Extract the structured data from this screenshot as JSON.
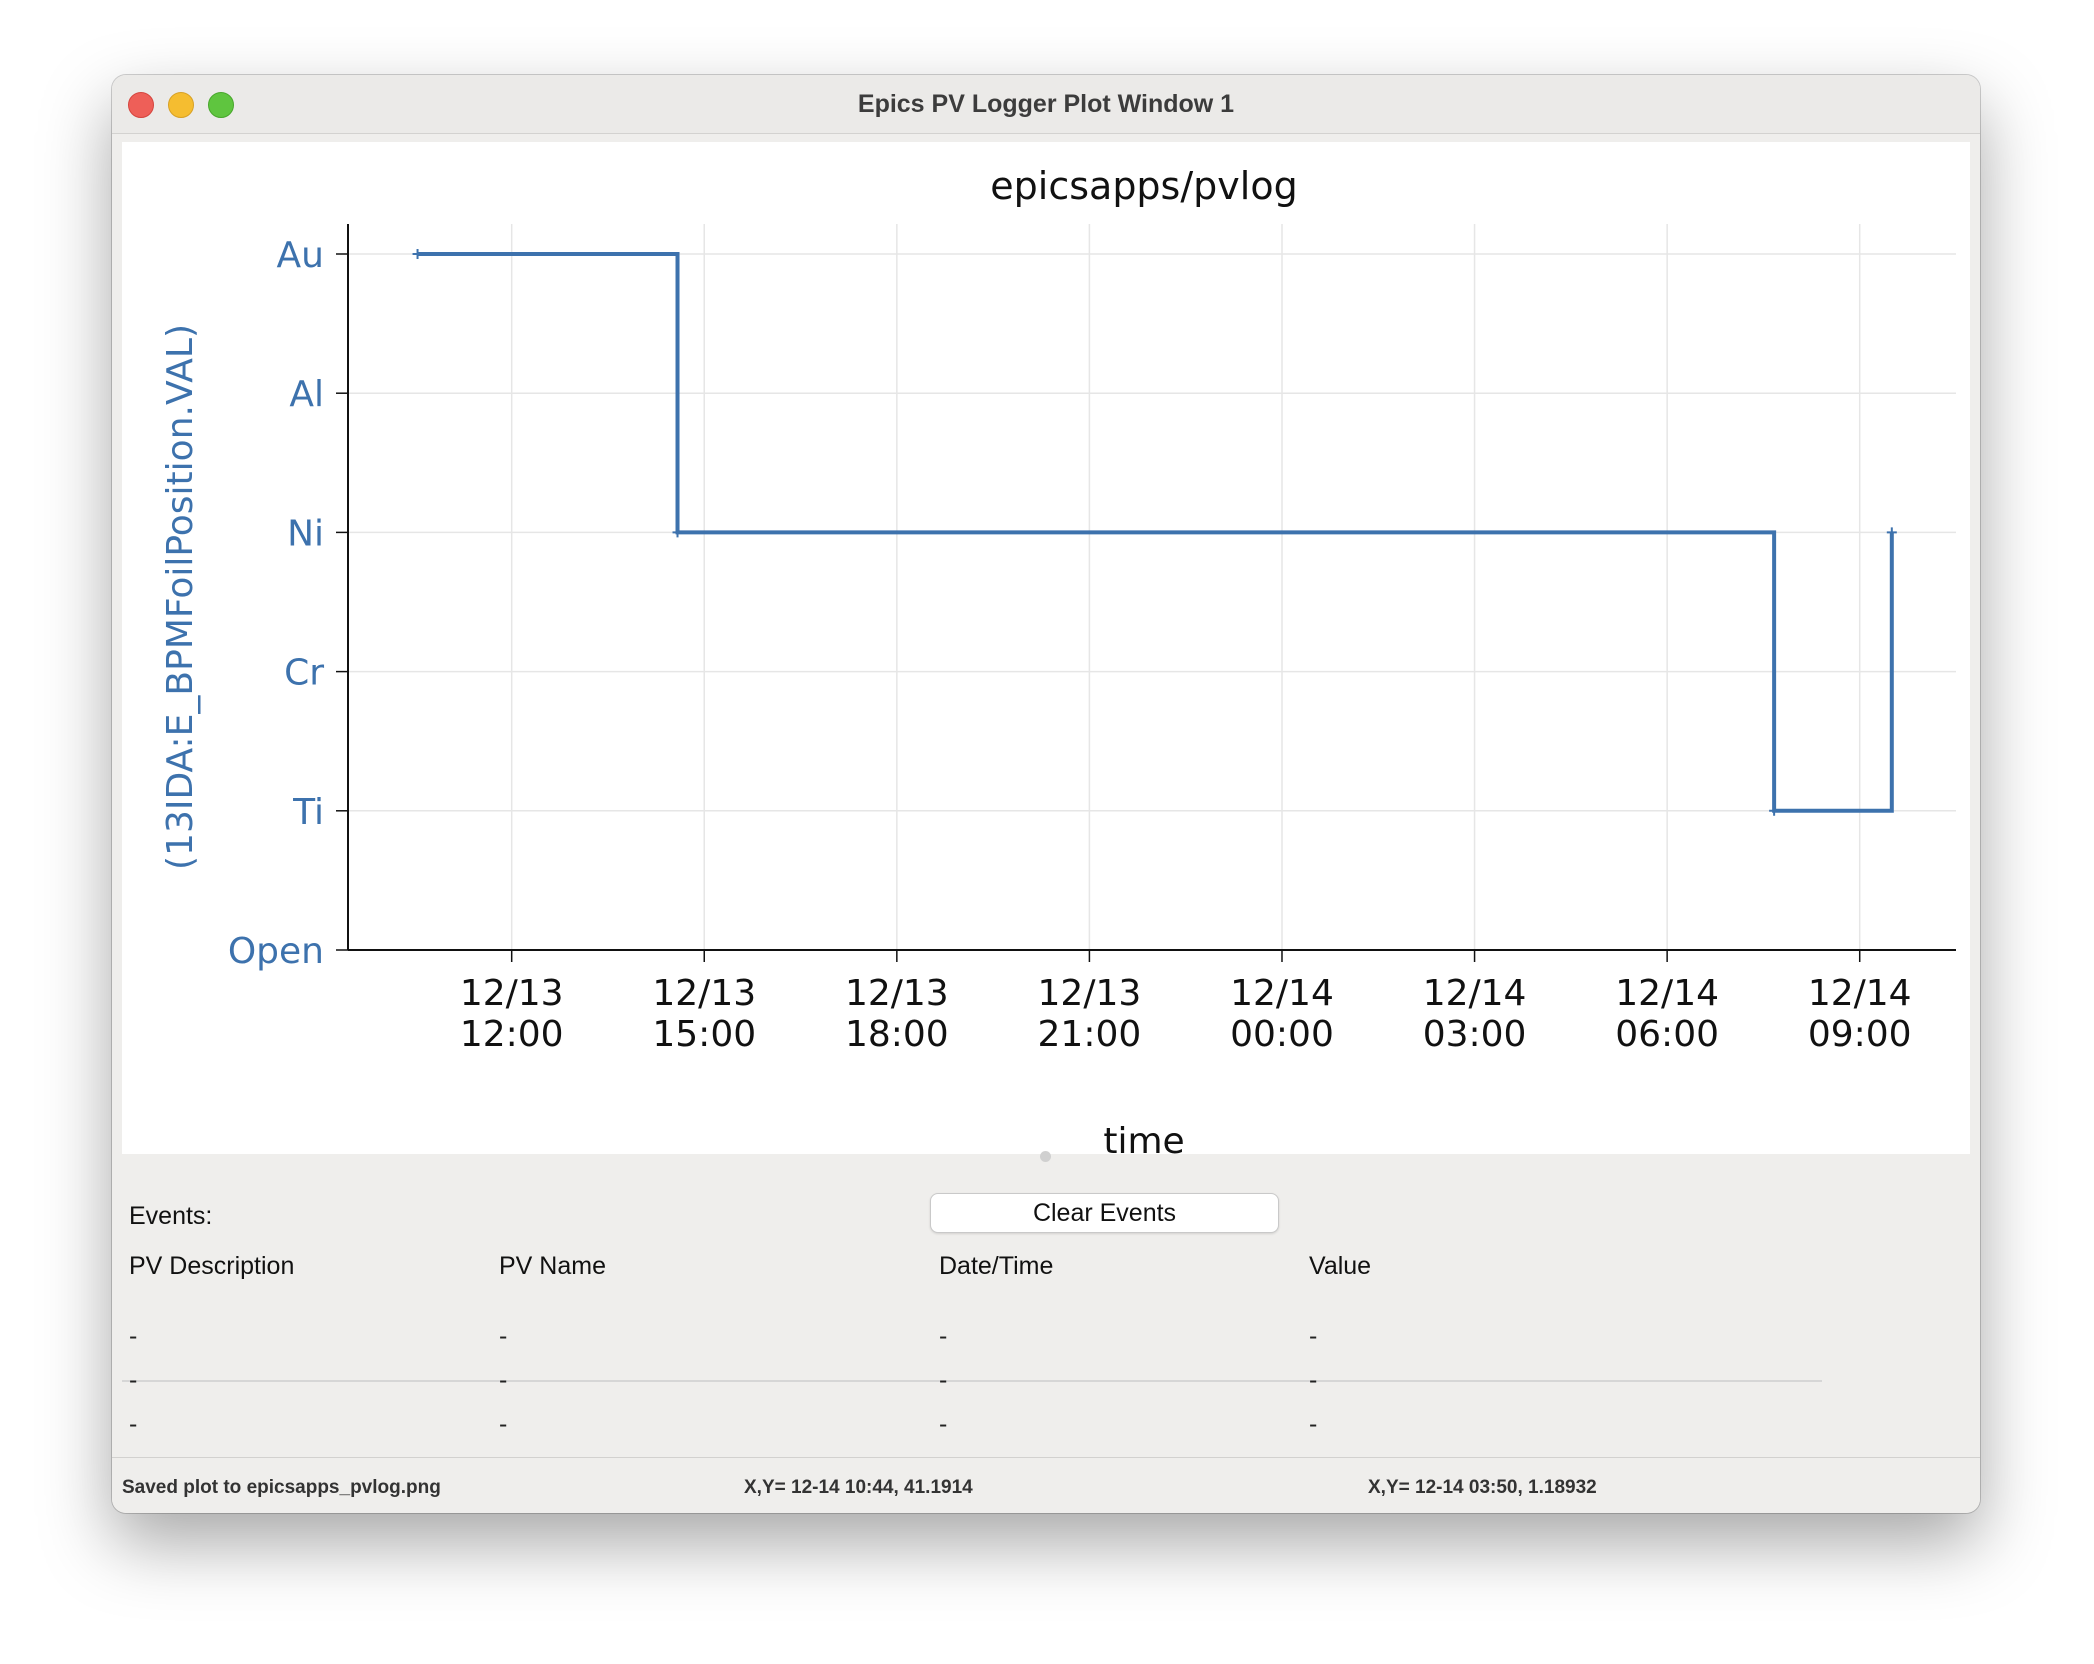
{
  "window": {
    "title": "Epics PV Logger Plot Window 1"
  },
  "chart_data": {
    "type": "line",
    "title": "epicsapps/pvlog",
    "xlabel": "time",
    "ylabel": "(13IDA:E_BPMFoilPosition.VAL)",
    "color": "#3d72ad",
    "step": true,
    "grid": true,
    "y_categories": [
      "Open",
      "Ti",
      "Cr",
      "Ni",
      "Al",
      "Au"
    ],
    "ylim": [
      0,
      5
    ],
    "xlim": [
      "2023-12-13 09:27",
      "2023-12-14 10:30"
    ],
    "x_ticks": [
      {
        "date": "12/13",
        "time": "12:00",
        "x": "2023-12-13 12:00"
      },
      {
        "date": "12/13",
        "time": "15:00",
        "x": "2023-12-13 15:00"
      },
      {
        "date": "12/13",
        "time": "18:00",
        "x": "2023-12-13 18:00"
      },
      {
        "date": "12/13",
        "time": "21:00",
        "x": "2023-12-13 21:00"
      },
      {
        "date": "12/14",
        "time": "00:00",
        "x": "2023-12-14 00:00"
      },
      {
        "date": "12/14",
        "time": "03:00",
        "x": "2023-12-14 03:00"
      },
      {
        "date": "12/14",
        "time": "06:00",
        "x": "2023-12-14 06:00"
      },
      {
        "date": "12/14",
        "time": "09:00",
        "x": "2023-12-14 09:00"
      }
    ],
    "series": [
      {
        "points": [
          {
            "x": "2023-12-13 10:32",
            "y": 5
          },
          {
            "x": "2023-12-13 14:35",
            "y": 3
          },
          {
            "x": "2023-12-14 07:40",
            "y": 1
          },
          {
            "x": "2023-12-14 09:30",
            "y": 3
          }
        ]
      }
    ]
  },
  "events": {
    "label": "Events:",
    "clear_button": "Clear Events",
    "columns": [
      "PV Description",
      "PV Name",
      "Date/Time",
      "Value"
    ],
    "rows": [
      [
        "-",
        "-",
        "-",
        "-"
      ],
      [
        "-",
        "-",
        "-",
        "-"
      ],
      [
        "-",
        "-",
        "-",
        "-"
      ]
    ]
  },
  "status": {
    "message": "Saved plot to epicsapps_pvlog.png",
    "cursor1": "X,Y= 12-14 10:44, 41.1914",
    "cursor2": "X,Y= 12-14 03:50, 1.18932"
  }
}
